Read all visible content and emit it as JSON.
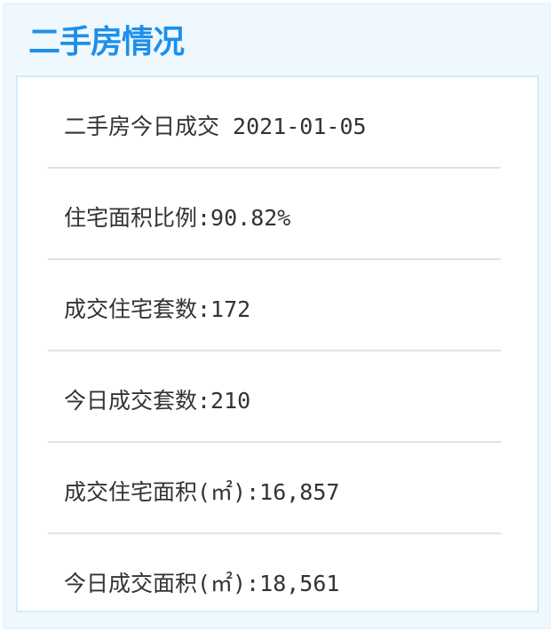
{
  "title": "二手房情况",
  "rows": [
    {
      "label": "二手房今日成交 2021-01-05"
    },
    {
      "label": "住宅面积比例:90.82%"
    },
    {
      "label": "成交住宅套数:172"
    },
    {
      "label": "今日成交套数:210"
    },
    {
      "label": "成交住宅面积(㎡):16,857"
    },
    {
      "label": "今日成交面积(㎡):18,561"
    }
  ],
  "colors": {
    "title": "#1e8fea",
    "panel_bg": "#eef8fe",
    "box_border": "#cdeefb"
  }
}
